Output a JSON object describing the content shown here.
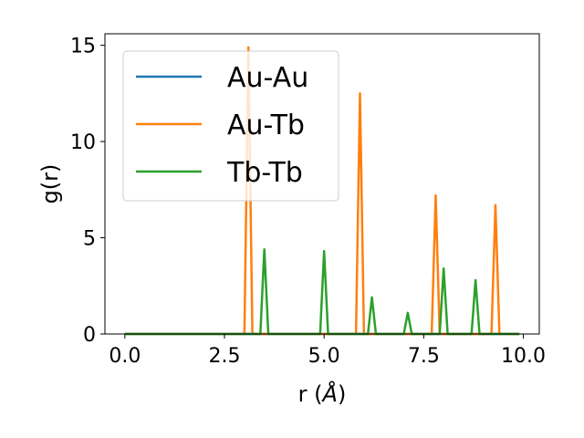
{
  "chart_data": {
    "type": "line",
    "xlabel_prefix": "r (",
    "xlabel_unit": "Å",
    "xlabel_suffix": ")",
    "ylabel": "g(r)",
    "xlim": [
      -0.5,
      10.4
    ],
    "ylim": [
      0,
      15.6
    ],
    "xticks": [
      0.0,
      2.5,
      5.0,
      7.5,
      10.0
    ],
    "xtick_labels": [
      "0.0",
      "2.5",
      "5.0",
      "7.5",
      "10.0"
    ],
    "yticks": [
      0,
      5,
      10,
      15
    ],
    "ytick_labels": [
      "0",
      "5",
      "10",
      "15"
    ],
    "grid": false,
    "legend_position": "upper-left",
    "x_range": [
      0.0,
      9.9
    ],
    "series": [
      {
        "name": "Au-Au",
        "color": "#1f77b4",
        "peaks": []
      },
      {
        "name": "Au-Tb",
        "color": "#ff7f0e",
        "peaks": [
          {
            "r": 3.1,
            "g": 14.9
          },
          {
            "r": 5.9,
            "g": 12.5
          },
          {
            "r": 7.8,
            "g": 7.2
          },
          {
            "r": 9.3,
            "g": 6.7
          }
        ]
      },
      {
        "name": "Tb-Tb",
        "color": "#2ca02c",
        "peaks": [
          {
            "r": 3.5,
            "g": 4.4
          },
          {
            "r": 5.0,
            "g": 4.3
          },
          {
            "r": 6.2,
            "g": 1.9
          },
          {
            "r": 7.1,
            "g": 1.1
          },
          {
            "r": 8.0,
            "g": 3.4
          },
          {
            "r": 8.8,
            "g": 2.8
          }
        ]
      }
    ]
  }
}
